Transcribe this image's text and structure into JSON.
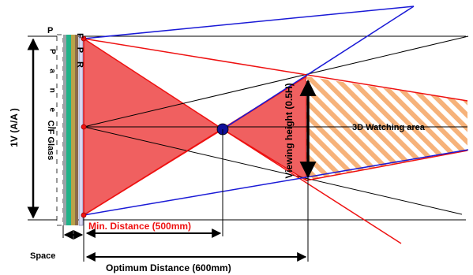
{
  "labels": {
    "panel_letters": "P a n e l",
    "fpr_letters": "F P R",
    "vertical_aa": "1V (A/A )",
    "cf_glass": "C/F Glass",
    "viewing_height": "Viewing height (0.5H)",
    "watching_area": "3D Watching area",
    "min_distance": "Min. Distance (500mm)",
    "space": "Space",
    "optimum_distance": "Optimum Distance (600mm)"
  },
  "colors": {
    "red": "#ee1111",
    "red_fill": "#f06060",
    "blue": "#1a1ad6",
    "black": "#000000",
    "hatch": "#f4a05a",
    "dot_blue": "#10109a"
  }
}
